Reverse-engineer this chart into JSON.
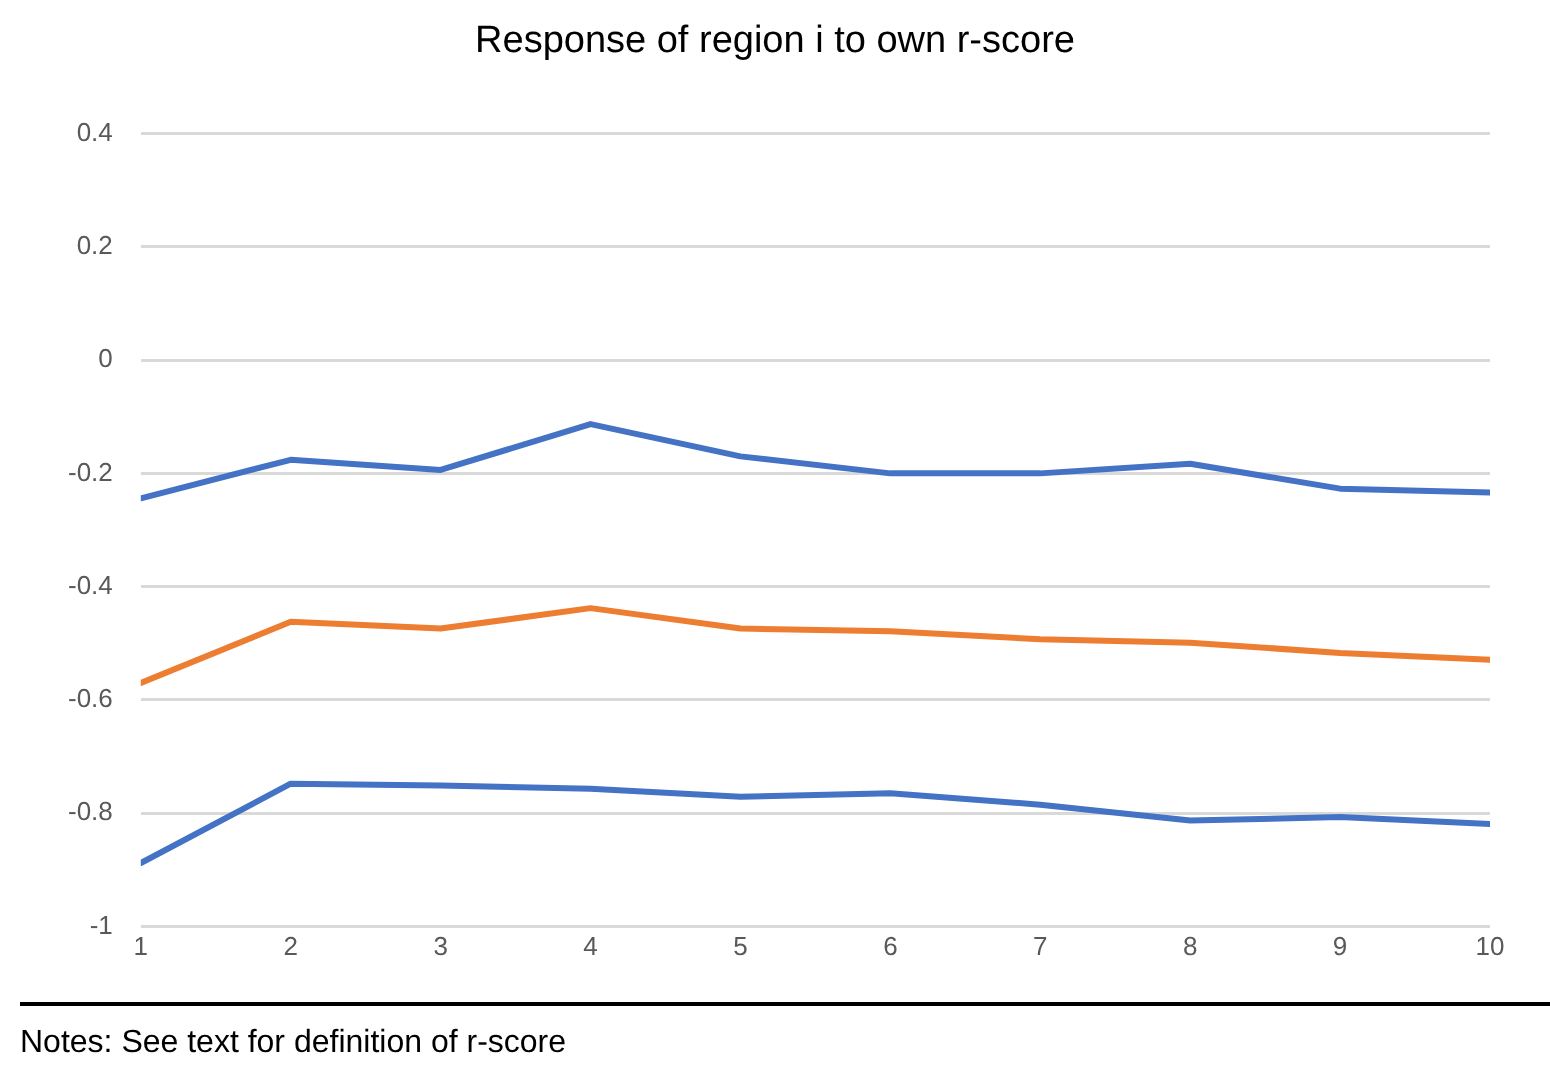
{
  "chart_data": {
    "type": "line",
    "title": "Response of region i to own r-score",
    "x": [
      1,
      2,
      3,
      4,
      5,
      6,
      7,
      8,
      9,
      10
    ],
    "series": [
      {
        "color": "#4472c4",
        "values": [
          -0.244,
          -0.176,
          -0.194,
          -0.113,
          -0.17,
          -0.2,
          -0.2,
          -0.183,
          -0.227,
          -0.234
        ]
      },
      {
        "color": "#ed7d31",
        "values": [
          -0.57,
          -0.462,
          -0.474,
          -0.438,
          -0.474,
          -0.479,
          -0.493,
          -0.499,
          -0.517,
          -0.529
        ]
      },
      {
        "color": "#4472c4",
        "values": [
          -0.888,
          -0.748,
          -0.751,
          -0.757,
          -0.771,
          -0.765,
          -0.785,
          -0.813,
          -0.807,
          -0.819
        ]
      }
    ],
    "xlim": [
      1,
      10
    ],
    "xticks": [
      1,
      2,
      3,
      4,
      5,
      6,
      7,
      8,
      9,
      10
    ],
    "ylim": [
      -1,
      0.4
    ],
    "yticks": [
      -1,
      -0.8,
      -0.6,
      -0.4,
      -0.2,
      0,
      0.2,
      0.4
    ],
    "grid": "y",
    "legend": false,
    "marker": "none",
    "line_style": "solid",
    "annotations": [
      "Notes: See text for definition of r-score"
    ]
  }
}
